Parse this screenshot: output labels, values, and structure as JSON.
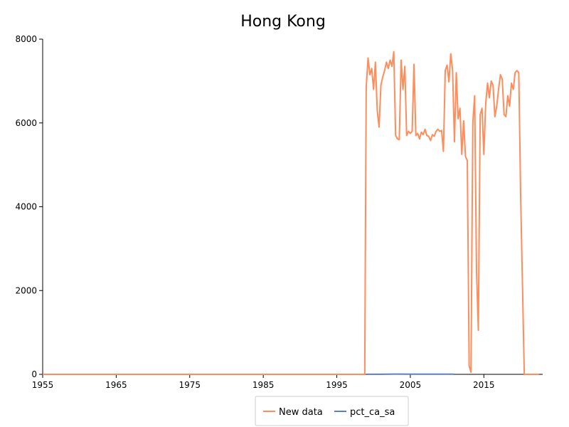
{
  "chart_data": {
    "type": "line",
    "title": "Hong Kong",
    "xlim": [
      1955,
      2023
    ],
    "ylim": [
      0,
      8000
    ],
    "x_ticks": [
      "1955",
      "1965",
      "1975",
      "1985",
      "1995",
      "2005",
      "2015"
    ],
    "y_ticks": [
      "0",
      "2000",
      "4000",
      "6000",
      "8000"
    ],
    "grid": false,
    "legend_position": "bottom-center",
    "series": [
      {
        "name": "New data",
        "color": "#ff8c5a",
        "x": [
          1955,
          1998.8,
          1999.0,
          1999.25,
          1999.5,
          1999.75,
          2000.0,
          2000.25,
          2000.5,
          2000.75,
          2001.0,
          2001.25,
          2001.5,
          2001.75,
          2002.0,
          2002.25,
          2002.5,
          2002.75,
          2003.0,
          2003.25,
          2003.5,
          2003.75,
          2004.0,
          2004.25,
          2004.5,
          2004.75,
          2005.0,
          2005.25,
          2005.5,
          2005.75,
          2006.0,
          2006.25,
          2006.5,
          2006.75,
          2007.0,
          2007.25,
          2007.5,
          2007.75,
          2008.0,
          2008.25,
          2008.5,
          2008.75,
          2009.0,
          2009.25,
          2009.5,
          2009.75,
          2010.0,
          2010.25,
          2010.5,
          2010.75,
          2011.0,
          2011.25,
          2011.5,
          2011.75,
          2012.0,
          2012.25,
          2012.5,
          2012.75,
          2013.0,
          2013.25,
          2013.5,
          2013.75,
          2014.0,
          2014.25,
          2014.5,
          2014.75,
          2015.0,
          2015.25,
          2015.5,
          2015.75,
          2016.0,
          2016.25,
          2016.5,
          2016.75,
          2017.0,
          2017.25,
          2017.5,
          2017.75,
          2018.0,
          2018.25,
          2018.5,
          2018.75,
          2019.0,
          2019.25,
          2019.5,
          2019.75,
          2020.0,
          2020.5,
          2022.5
        ],
        "y": [
          0,
          0,
          6850,
          7550,
          7150,
          7300,
          6800,
          7450,
          6300,
          5900,
          6900,
          7100,
          7250,
          7450,
          7300,
          7500,
          7350,
          7700,
          5700,
          5620,
          5600,
          7500,
          6800,
          7350,
          5700,
          5800,
          5750,
          5800,
          7400,
          5700,
          5750,
          5620,
          5780,
          5720,
          5850,
          5700,
          5680,
          5580,
          5720,
          5680,
          5800,
          5850,
          5800,
          5820,
          5320,
          7250,
          7380,
          6980,
          7650,
          7250,
          5550,
          7200,
          6100,
          6350,
          5250,
          6050,
          5200,
          5100,
          200,
          50,
          6000,
          6650,
          2500,
          1050,
          6200,
          6350,
          5250,
          6450,
          6950,
          6600,
          7000,
          6900,
          6150,
          6400,
          6800,
          7150,
          7050,
          6200,
          6150,
          6650,
          6400,
          6950,
          6800,
          7200,
          7250,
          7200,
          4300,
          0,
          0
        ]
      },
      {
        "name": "pct_ca_sa",
        "color": "#5b7fbf",
        "x": [
          1999,
          2001,
          2003,
          2005,
          2007,
          2009,
          2011
        ],
        "y": [
          2,
          3,
          6,
          4,
          5,
          5,
          3
        ]
      }
    ]
  }
}
